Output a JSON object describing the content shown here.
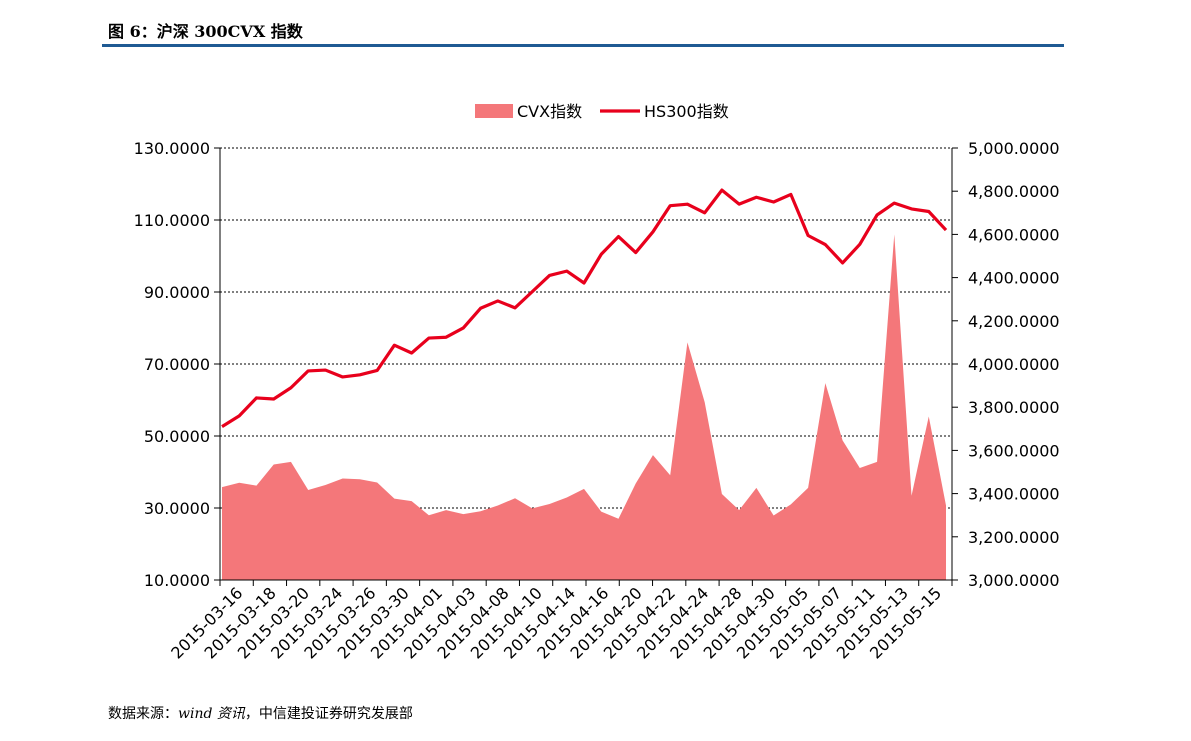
{
  "header": {
    "figure_title": "图 6：沪深 300CVX 指数"
  },
  "footer": {
    "source_prefix": "数据来源：",
    "source_name": "wind 资讯",
    "source_suffix": "，中信建投证券研究发展部"
  },
  "colors": {
    "area": "#f4777a",
    "line": "#e8001c",
    "title_rule": "#1f5a93"
  },
  "chart_data": {
    "type": "area",
    "legend_position": "top-center",
    "grid": "horizontal-dashed",
    "x_tick_labels": [
      "2015-03-16",
      "2015-03-18",
      "2015-03-20",
      "2015-03-24",
      "2015-03-26",
      "2015-03-30",
      "2015-04-01",
      "2015-04-03",
      "2015-04-08",
      "2015-04-10",
      "2015-04-14",
      "2015-04-16",
      "2015-04-20",
      "2015-04-22",
      "2015-04-24",
      "2015-04-28",
      "2015-04-30",
      "2015-05-05",
      "2015-05-07",
      "2015-05-11",
      "2015-05-13",
      "2015-05-15"
    ],
    "y_left": {
      "ticks": [
        "130.0000",
        "110.0000",
        "90.0000",
        "70.0000",
        "50.0000",
        "30.0000",
        "10.0000"
      ],
      "range": [
        10,
        130
      ]
    },
    "y_right": {
      "ticks": [
        "5,000.0000",
        "4,800.0000",
        "4,600.0000",
        "4,400.0000",
        "4,200.0000",
        "4,000.0000",
        "3,800.0000",
        "3,600.0000",
        "3,400.0000",
        "3,200.0000",
        "3,000.0000"
      ],
      "range": [
        3000,
        5000
      ]
    },
    "series": [
      {
        "name": "CVX指数",
        "type": "area",
        "axis": "left",
        "values": [
          35.8,
          37.0,
          36.2,
          42.1,
          42.8,
          35.0,
          36.4,
          38.2,
          38.0,
          37.1,
          32.6,
          31.9,
          28.0,
          29.4,
          28.3,
          29.1,
          30.7,
          32.7,
          29.9,
          31.1,
          32.9,
          35.3,
          29.0,
          27.0,
          36.8,
          44.7,
          39.1,
          76.0,
          59.4,
          33.9,
          29.4,
          35.6,
          27.9,
          31.0,
          35.6,
          64.7,
          48.8,
          41.1,
          42.8,
          106.0,
          33.4,
          55.4,
          30.7
        ]
      },
      {
        "name": "HS300指数",
        "type": "line",
        "axis": "right",
        "values": [
          3710,
          3760,
          3843,
          3838,
          3890,
          3968,
          3972,
          3940,
          3950,
          3970,
          4087,
          4051,
          4120,
          4124,
          4167,
          4258,
          4292,
          4260,
          4335,
          4410,
          4430,
          4375,
          4508,
          4590,
          4516,
          4612,
          4733,
          4740,
          4700,
          4805,
          4740,
          4772,
          4750,
          4785,
          4595,
          4553,
          4468,
          4554,
          4690,
          4745,
          4718,
          4706,
          4620
        ]
      }
    ]
  }
}
